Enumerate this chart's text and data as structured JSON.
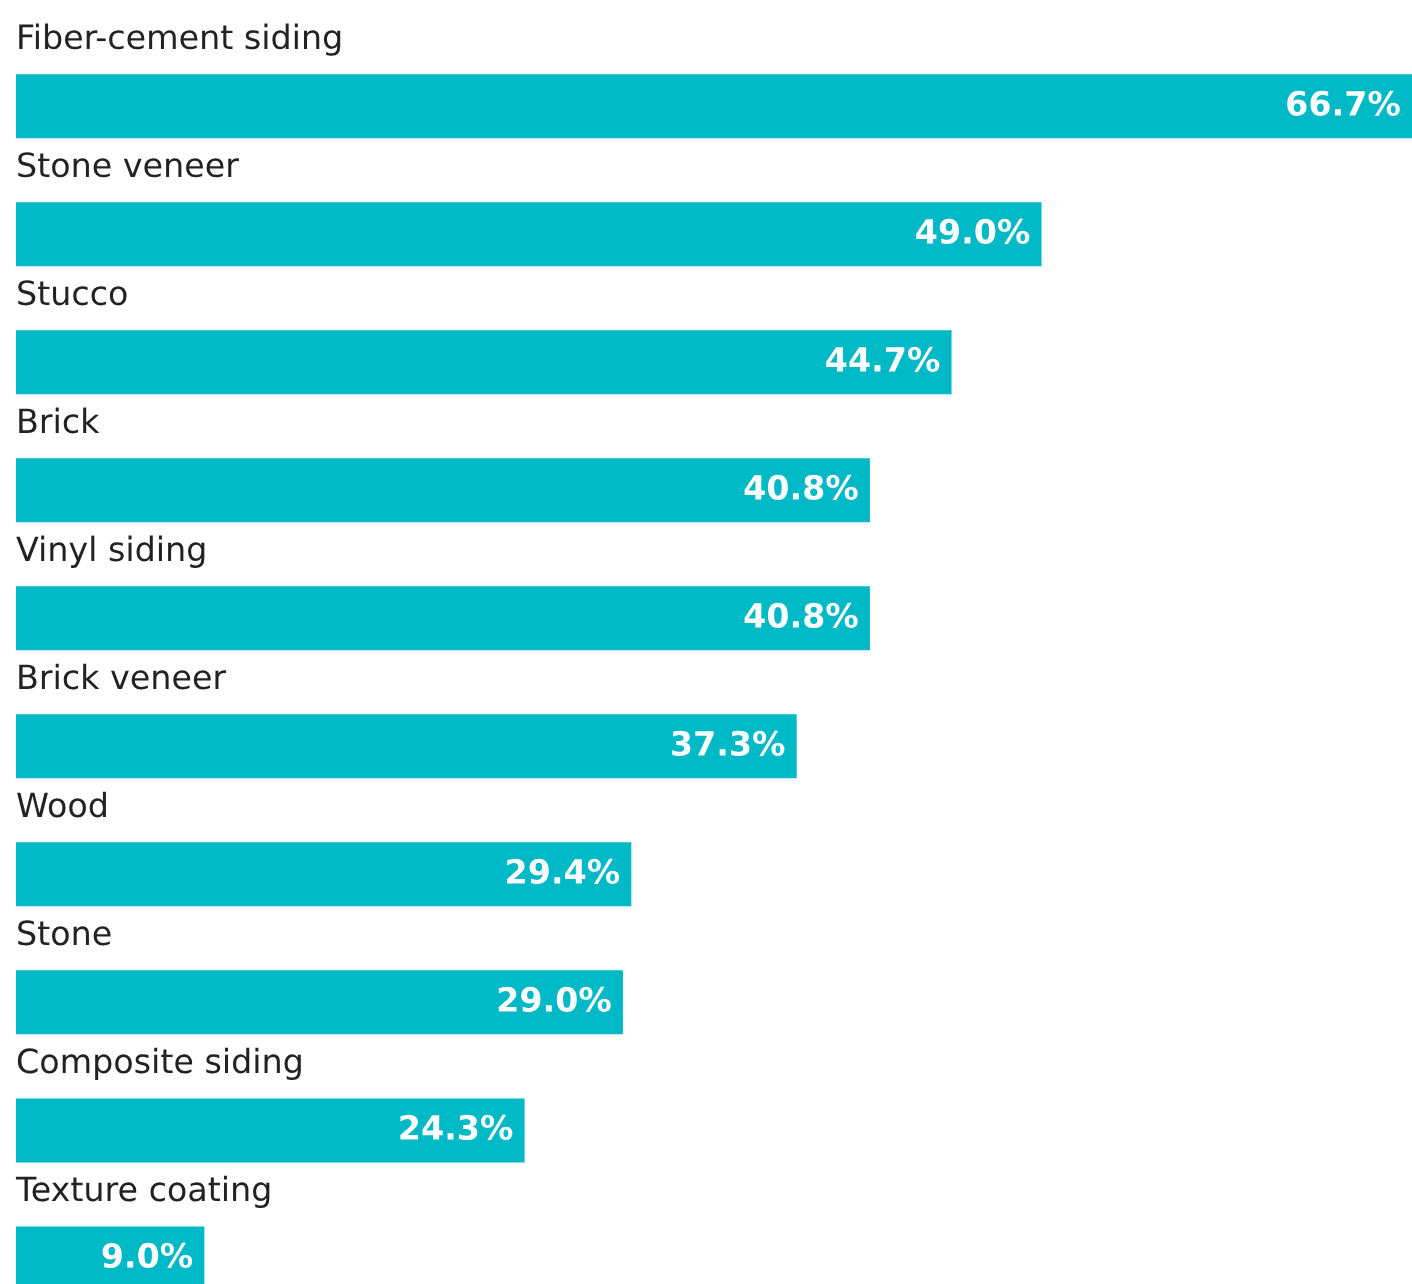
{
  "chart_data": {
    "type": "bar",
    "orientation": "horizontal",
    "data_labels": true,
    "color": "#00b9c6",
    "categories": [
      "Fiber-cement siding",
      "Stone veneer",
      "Stucco",
      "Brick",
      "Vinyl siding",
      "Brick veneer",
      "Wood",
      "Stone",
      "Composite siding",
      "Texture coating"
    ],
    "values": [
      66.7,
      49.0,
      44.7,
      40.8,
      40.8,
      37.3,
      29.4,
      29.0,
      24.3,
      9.0
    ],
    "value_labels": [
      "66.7%",
      "49.0%",
      "44.7%",
      "40.8%",
      "40.8%",
      "37.3%",
      "29.4%",
      "29.0%",
      "24.3%",
      "9.0%"
    ]
  }
}
